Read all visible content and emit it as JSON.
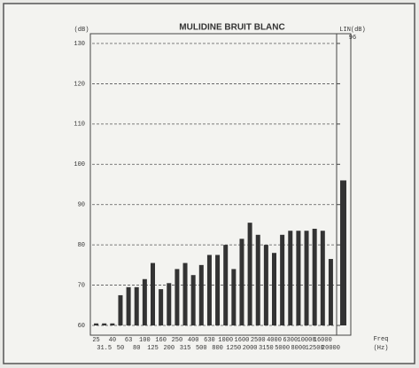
{
  "chart_data": {
    "type": "bar",
    "title": "MULIDINE BRUIT BLANC",
    "y_label": "(dB)",
    "x_label": "Freq",
    "x_unit": "(Hz)",
    "categories": [
      "25",
      "31.5",
      "40",
      "50",
      "63",
      "80",
      "100",
      "125",
      "160",
      "200",
      "250",
      "315",
      "400",
      "500",
      "630",
      "800",
      "1000",
      "1250",
      "1600",
      "2000",
      "2500",
      "3150",
      "4000",
      "5000",
      "6300",
      "8000",
      "10000",
      "12500",
      "16000",
      "20000"
    ],
    "values": [
      60.5,
      60.5,
      60.5,
      67.5,
      69.5,
      69.5,
      71.5,
      75.5,
      69,
      70.5,
      74,
      75.5,
      72.5,
      75,
      77.5,
      77.5,
      80,
      74,
      81.5,
      85.5,
      82.5,
      80,
      78,
      82.5,
      83.5,
      83.5,
      83.5,
      84,
      83.5,
      76.5
    ],
    "color": "#333333",
    "lin": {
      "label": "LIN(dB)",
      "value": 96
    },
    "ylim": [
      60,
      130
    ],
    "yticks": [
      60,
      70,
      80,
      90,
      100,
      110,
      120,
      130
    ],
    "grid": true
  }
}
